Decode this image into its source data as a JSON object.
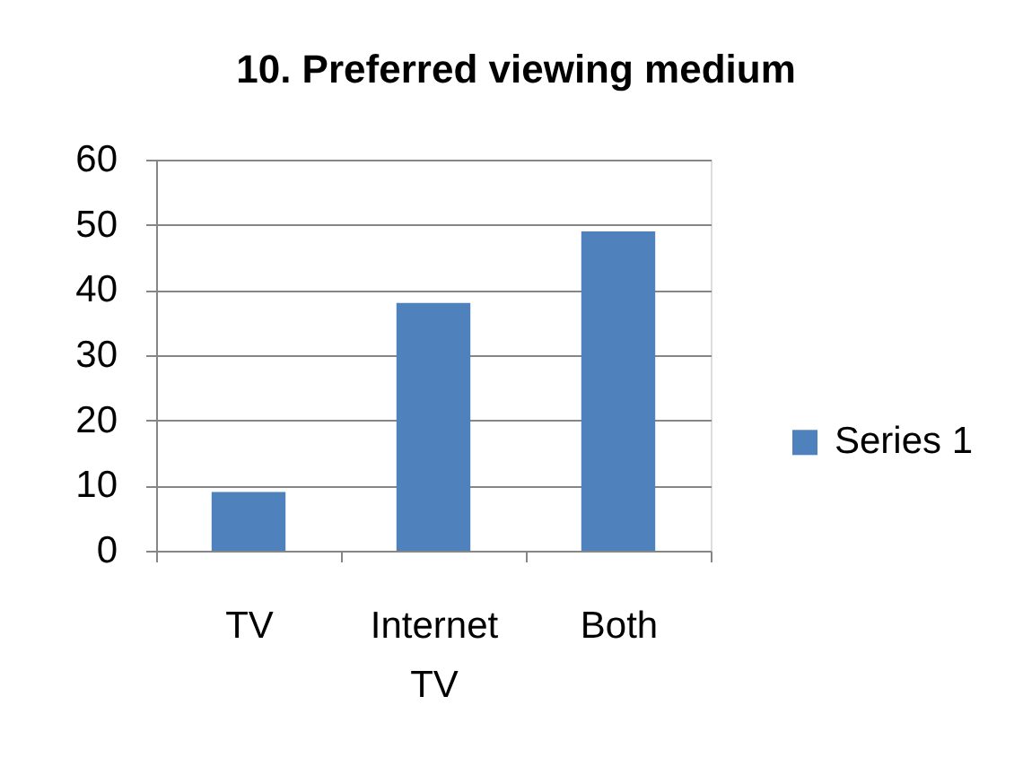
{
  "chart_data": {
    "type": "bar",
    "title": "10. Preferred  viewing medium",
    "categories": [
      "TV",
      "Internet TV",
      "Both"
    ],
    "series": [
      {
        "name": "Series 1",
        "color": "#4f81bd",
        "values": [
          9,
          38,
          49
        ]
      }
    ],
    "ylim": [
      0,
      60
    ],
    "yticks": [
      0,
      10,
      20,
      30,
      40,
      50,
      60
    ],
    "grid": "y",
    "legend": "right"
  }
}
